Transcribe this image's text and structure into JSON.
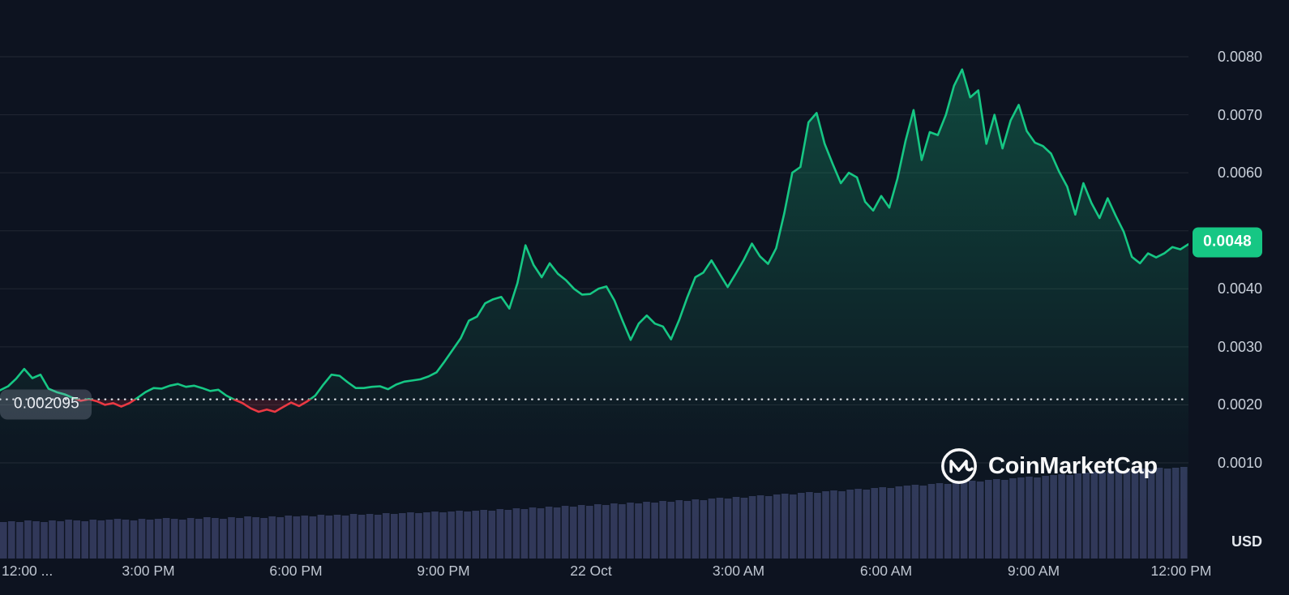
{
  "watermark": {
    "text": "CoinMarketCap"
  },
  "overlays": {
    "baseline_label": "0.002095",
    "current_price_label": "0.0048"
  },
  "colors": {
    "background": "#0d1320",
    "up": "#16c784",
    "down": "#ea3943",
    "badge_bg": "#16c784",
    "volume": "#4a5180",
    "baseline_dotted": "#edf0f4"
  },
  "chart_data": {
    "type": "line",
    "title": "",
    "xlabel": "",
    "ylabel": "USD",
    "ylim": [
      0.001,
      0.008
    ],
    "y_gridlines": [
      0.001,
      0.002,
      0.003,
      0.004,
      0.005,
      0.006,
      0.007,
      0.008
    ],
    "y_tick_labels": [
      "0.0080",
      "0.0070",
      "0.0060",
      "0.0040",
      "0.0030",
      "0.0020",
      "0.0010"
    ],
    "y_tick_values": [
      0.008,
      0.007,
      0.006,
      0.004,
      0.003,
      0.002,
      0.001
    ],
    "x_tick_labels": [
      "12:00 ...",
      "3:00 PM",
      "6:00 PM",
      "9:00 PM",
      "22 Oct",
      "3:00 AM",
      "6:00 AM",
      "9:00 AM",
      "12:00 PM"
    ],
    "baseline_value": 0.002095,
    "current_price": 0.0048,
    "legend_position": "none",
    "grid": true,
    "prices": [
      0.00225,
      0.00232,
      0.00245,
      0.00262,
      0.00246,
      0.00252,
      0.00228,
      0.00222,
      0.00218,
      0.00212,
      0.00207,
      0.0021,
      0.00206,
      0.002,
      0.00203,
      0.00197,
      0.00203,
      0.00212,
      0.00222,
      0.00229,
      0.00228,
      0.00233,
      0.00236,
      0.00231,
      0.00233,
      0.00229,
      0.00224,
      0.00226,
      0.00216,
      0.00209,
      0.00203,
      0.00194,
      0.00188,
      0.00192,
      0.00188,
      0.00196,
      0.00204,
      0.00198,
      0.00206,
      0.00216,
      0.00235,
      0.00252,
      0.0025,
      0.00239,
      0.00229,
      0.00229,
      0.00231,
      0.00232,
      0.00227,
      0.00235,
      0.0024,
      0.00242,
      0.00244,
      0.00249,
      0.00256,
      0.00275,
      0.00295,
      0.00315,
      0.00345,
      0.00352,
      0.00375,
      0.00382,
      0.00386,
      0.00366,
      0.0041,
      0.00475,
      0.00441,
      0.0042,
      0.00444,
      0.00426,
      0.00415,
      0.004,
      0.0039,
      0.00391,
      0.004,
      0.00404,
      0.0038,
      0.00345,
      0.00312,
      0.0034,
      0.00354,
      0.0034,
      0.00335,
      0.00313,
      0.00346,
      0.00385,
      0.0042,
      0.00428,
      0.00449,
      0.00426,
      0.00403,
      0.00426,
      0.0045,
      0.00478,
      0.00456,
      0.00443,
      0.0047,
      0.0053,
      0.006,
      0.0061,
      0.00687,
      0.00703,
      0.0065,
      0.00615,
      0.00582,
      0.006,
      0.00592,
      0.0055,
      0.00535,
      0.0056,
      0.0054,
      0.0059,
      0.00655,
      0.00708,
      0.00622,
      0.0067,
      0.00665,
      0.007,
      0.0075,
      0.00778,
      0.0073,
      0.00742,
      0.0065,
      0.007,
      0.00642,
      0.0069,
      0.00717,
      0.00672,
      0.00652,
      0.00646,
      0.00633,
      0.00602,
      0.00576,
      0.00528,
      0.00582,
      0.00548,
      0.00522,
      0.00556,
      0.00526,
      0.00498,
      0.00455,
      0.00444,
      0.00461,
      0.00454,
      0.00461,
      0.00472,
      0.00468,
      0.00477
    ],
    "volume_relative": [
      45,
      46,
      45,
      47,
      46,
      45,
      47,
      46,
      48,
      47,
      46,
      48,
      47,
      48,
      49,
      48,
      47,
      49,
      48,
      49,
      50,
      49,
      48,
      50,
      49,
      51,
      50,
      49,
      51,
      50,
      52,
      51,
      50,
      52,
      51,
      53,
      52,
      53,
      52,
      54,
      53,
      54,
      53,
      55,
      54,
      55,
      54,
      56,
      55,
      56,
      57,
      56,
      57,
      58,
      57,
      58,
      59,
      58,
      59,
      60,
      59,
      61,
      60,
      62,
      61,
      63,
      62,
      64,
      63,
      65,
      64,
      66,
      65,
      67,
      66,
      68,
      67,
      69,
      68,
      70,
      69,
      71,
      70,
      72,
      71,
      73,
      72,
      74,
      75,
      74,
      76,
      75,
      77,
      78,
      77,
      79,
      80,
      79,
      81,
      82,
      81,
      83,
      84,
      83,
      85,
      86,
      85,
      87,
      88,
      87,
      89,
      90,
      91,
      90,
      92,
      93,
      92,
      94,
      95,
      96,
      95,
      97,
      98,
      97,
      99,
      100,
      101,
      100,
      102,
      103,
      104,
      103,
      105,
      106,
      107,
      106,
      108,
      109,
      108,
      110,
      111,
      110,
      112,
      111,
      112,
      113
    ]
  }
}
